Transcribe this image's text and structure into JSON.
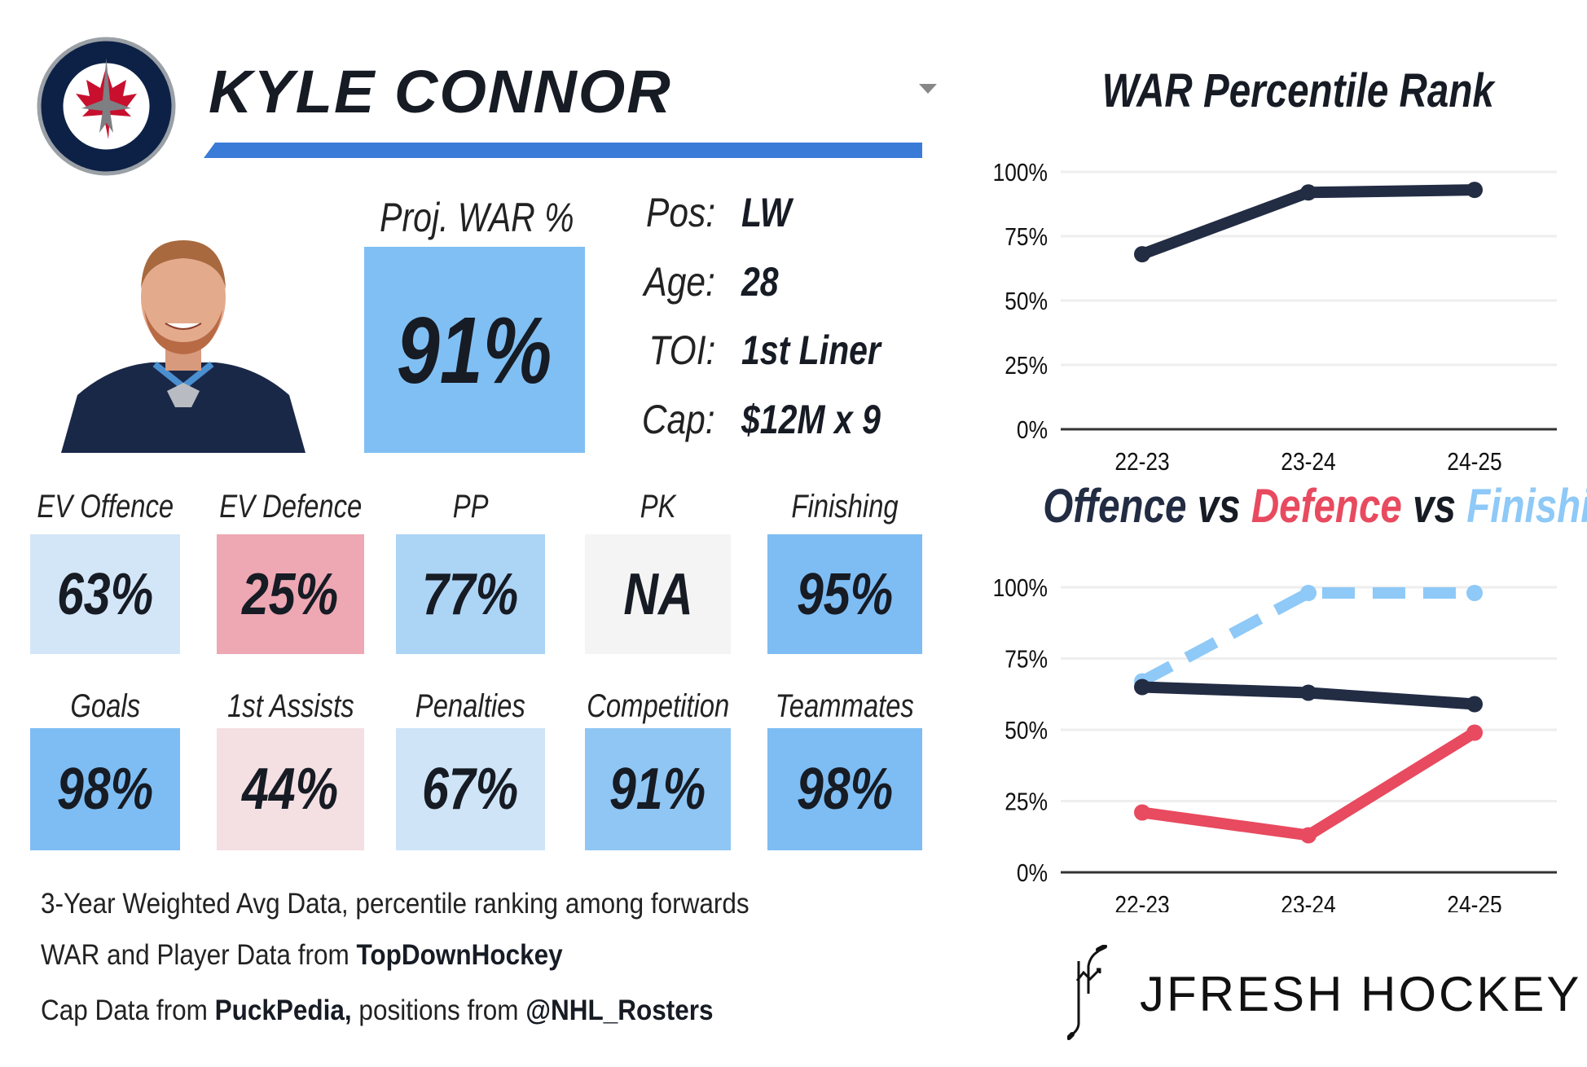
{
  "player": {
    "name": "KYLE CONNOR",
    "proj_war_label": "Proj. WAR %",
    "proj_war_value": "91%",
    "info": [
      {
        "label": "Pos:",
        "value": "LW"
      },
      {
        "label": "Age:",
        "value": "28"
      },
      {
        "label": "TOI:",
        "value": "1st Liner"
      },
      {
        "label": "Cap:",
        "value": "$12M x 9"
      }
    ]
  },
  "tiles_row1": [
    {
      "label": "EV Offence",
      "value": "63%",
      "color": "#d3e6f7"
    },
    {
      "label": "EV Defence",
      "value": "25%",
      "color": "#eea8b3"
    },
    {
      "label": "PP",
      "value": "77%",
      "color": "#acd4f5"
    },
    {
      "label": "PK",
      "value": "NA",
      "color": "#f4f4f4"
    },
    {
      "label": "Finishing",
      "value": "95%",
      "color": "#7ebdf3"
    }
  ],
  "tiles_row2": [
    {
      "label": "Goals",
      "value": "98%",
      "color": "#7ebdf3"
    },
    {
      "label": "1st Assists",
      "value": "44%",
      "color": "#f4dfe3"
    },
    {
      "label": "Penalties",
      "value": "67%",
      "color": "#cfe4f7"
    },
    {
      "label": "Competition",
      "value": "91%",
      "color": "#8fc6f4"
    },
    {
      "label": "Teammates",
      "value": "98%",
      "color": "#7ebdf3"
    }
  ],
  "footer": {
    "line1": "3-Year Weighted Avg Data, percentile ranking among forwards",
    "line2_prefix": "WAR and Player Data from ",
    "line2_bold": "TopDownHockey",
    "line3_prefix": "Cap Data from ",
    "line3_bold1": "PuckPedia,",
    "line3_mid": " positions from ",
    "line3_bold2": "@NHL_Rosters"
  },
  "brand": "JFRESH HOCKEY",
  "chart_data": [
    {
      "type": "line",
      "title": "WAR Percentile Rank",
      "categories": [
        "22-23",
        "23-24",
        "24-25"
      ],
      "yticks": [
        "0%",
        "25%",
        "50%",
        "75%",
        "100%"
      ],
      "ylim": [
        0,
        100
      ],
      "grid": true,
      "series": [
        {
          "name": "WAR",
          "values": [
            68,
            92,
            93
          ],
          "color": "#222c43",
          "dashed": false
        }
      ]
    },
    {
      "type": "line",
      "title_parts": [
        {
          "text": "Offence",
          "color": "#222c43"
        },
        {
          "text": " vs ",
          "color": "#222c43"
        },
        {
          "text": "Defence",
          "color": "#e84a5f"
        },
        {
          "text": " vs ",
          "color": "#222c43"
        },
        {
          "text": "Finishing",
          "color": "#8ec9f7"
        }
      ],
      "categories": [
        "22-23",
        "23-24",
        "24-25"
      ],
      "yticks": [
        "0%",
        "25%",
        "50%",
        "75%",
        "100%"
      ],
      "ylim": [
        0,
        100
      ],
      "grid": true,
      "series": [
        {
          "name": "Finishing",
          "values": [
            67,
            98,
            98
          ],
          "color": "#8ec9f7",
          "dashed": true
        },
        {
          "name": "Offence",
          "values": [
            65,
            63,
            59
          ],
          "color": "#222c43",
          "dashed": false
        },
        {
          "name": "Defence",
          "values": [
            21,
            13,
            49
          ],
          "color": "#e84a5f",
          "dashed": false
        }
      ]
    }
  ]
}
